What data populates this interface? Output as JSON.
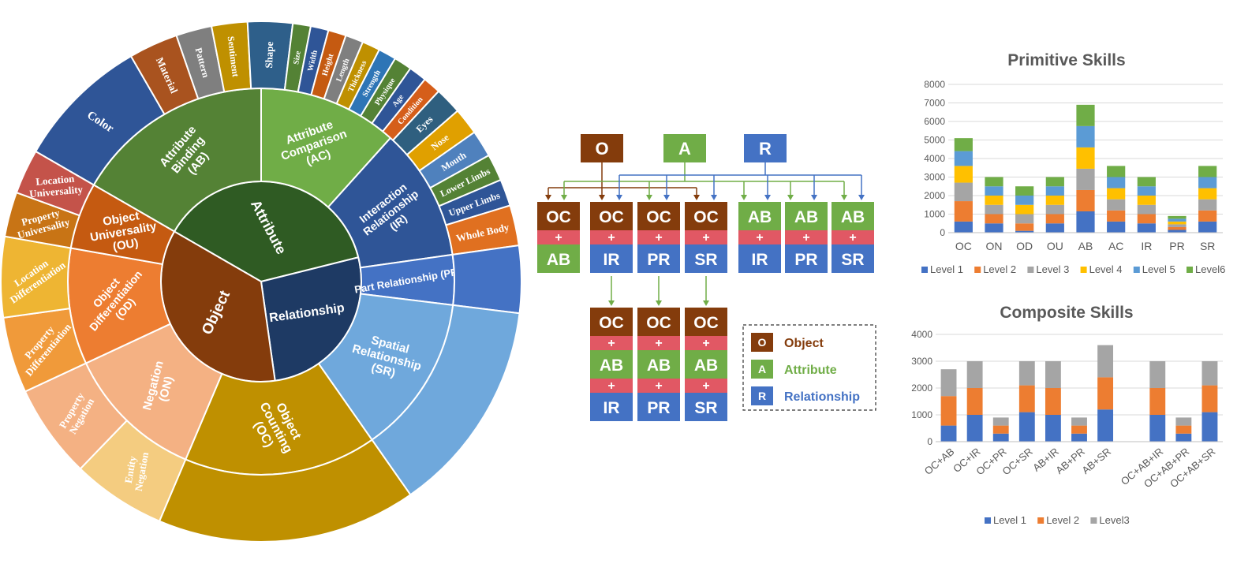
{
  "sunburst": {
    "inner": [
      {
        "label": "Attribute",
        "color": "#2f5b23"
      },
      {
        "label": "Relationship",
        "color": "#1e3a64"
      },
      {
        "label": "Object",
        "color": "#843c0c"
      }
    ],
    "middle": [
      {
        "label": "Attribute\nBinding\n(AB)",
        "color": "#548235"
      },
      {
        "label": "Attribute\nComparison\n(AC)",
        "color": "#70ad47"
      },
      {
        "label": "Interaction\nRelationship\n(IR)",
        "color": "#2f5597"
      },
      {
        "label": "Part Relationship (PR)",
        "color": "#4472c4"
      },
      {
        "label": "Spatial\nRelationship\n(SR)",
        "color": "#6fa8dc"
      },
      {
        "label": "Object\nCounting\n(OC)",
        "color": "#bf9000"
      },
      {
        "label": "Negation\n(ON)",
        "color": "#f4b183"
      },
      {
        "label": "Object\nDifferentiation\n(OD)",
        "color": "#ed7d31"
      },
      {
        "label": "Object\nUniversality\n(OU)",
        "color": "#c55a11"
      }
    ],
    "outer": [
      {
        "label": "Color",
        "color": "#2f5597"
      },
      {
        "label": "Material",
        "color": "#a9531f"
      },
      {
        "label": "Pattern",
        "color": "#7f7f7f"
      },
      {
        "label": "Sentiment",
        "color": "#bf9000"
      },
      {
        "label": "Shape",
        "color": "#2e5f8a"
      },
      {
        "label": "Size",
        "color": "#548235"
      },
      {
        "label": "Width",
        "color": "#2f5597"
      },
      {
        "label": "Height",
        "color": "#c55a11"
      },
      {
        "label": "Length",
        "color": "#7f7f7f"
      },
      {
        "label": "Thickness",
        "color": "#bf9000"
      },
      {
        "label": "Strength",
        "color": "#2e75b6"
      },
      {
        "label": "Physique",
        "color": "#548235"
      },
      {
        "label": "Age",
        "color": "#2f5597"
      },
      {
        "label": "Condition",
        "color": "#d55e1a"
      },
      {
        "label": "Eyes",
        "color": "#2f5f7f"
      },
      {
        "label": "Nose",
        "color": "#e0a000"
      },
      {
        "label": "Mouth",
        "color": "#4f81bd"
      },
      {
        "label": "Lower Limbs",
        "color": "#548235"
      },
      {
        "label": "Upper Limbs",
        "color": "#2f5597"
      },
      {
        "label": "Whole Body",
        "color": "#e07020"
      },
      {
        "label": "",
        "color": "#4472c4"
      },
      {
        "label": "",
        "color": "#6fa8dc"
      },
      {
        "label": "",
        "color": "#bf9000"
      },
      {
        "label": "Entity\nNegation",
        "color": "#f4cc80"
      },
      {
        "label": "Property\nNegation",
        "color": "#f4b183"
      },
      {
        "label": "Property\nDifferentiation",
        "color": "#f09a3a"
      },
      {
        "label": "Location\nDifferentiation",
        "color": "#eeb533"
      },
      {
        "label": "Property\nUniversality",
        "color": "#c87415"
      },
      {
        "label": "Location\nUniversality",
        "color": "#c4534a"
      }
    ]
  },
  "diagram": {
    "top": [
      {
        "letter": "O",
        "color": "#843c0c"
      },
      {
        "letter": "A",
        "color": "#70ad47"
      },
      {
        "letter": "R",
        "color": "#4472c4"
      }
    ],
    "plus": "+",
    "row1": [
      [
        "OC",
        "AB"
      ],
      [
        "OC",
        "IR"
      ],
      [
        "OC",
        "PR"
      ],
      [
        "OC",
        "SR"
      ],
      [
        "AB",
        "IR"
      ],
      [
        "AB",
        "PR"
      ],
      [
        "AB",
        "SR"
      ]
    ],
    "row2": [
      [
        "OC",
        "AB",
        "IR"
      ],
      [
        "OC",
        "AB",
        "PR"
      ],
      [
        "OC",
        "AB",
        "SR"
      ]
    ],
    "legend": [
      {
        "letter": "O",
        "label": "Object",
        "color": "#843c0c",
        "text_color": "#843c0c"
      },
      {
        "letter": "A",
        "label": "Attribute",
        "color": "#70ad47",
        "text_color": "#70ad47"
      },
      {
        "letter": "R",
        "label": "Relationship",
        "color": "#4472c4",
        "text_color": "#4472c4"
      }
    ]
  },
  "chart_data": [
    {
      "type": "bar",
      "stacked": true,
      "title": "Primitive Skills",
      "categories": [
        "OC",
        "ON",
        "OD",
        "OU",
        "AB",
        "AC",
        "IR",
        "PR",
        "SR"
      ],
      "ylim": [
        0,
        8000
      ],
      "yticks": [
        "0",
        "1000",
        "2000",
        "3000",
        "4000",
        "5000",
        "6000",
        "7000",
        "8000"
      ],
      "series": [
        {
          "name": "Level 1",
          "color": "#4472c4",
          "values": [
            600,
            500,
            100,
            500,
            1150,
            600,
            500,
            150,
            600
          ]
        },
        {
          "name": "Level 2",
          "color": "#ed7d31",
          "values": [
            1100,
            500,
            400,
            500,
            1150,
            600,
            500,
            150,
            600
          ]
        },
        {
          "name": "Level 3",
          "color": "#a5a5a5",
          "values": [
            1000,
            500,
            500,
            500,
            1150,
            600,
            500,
            150,
            600
          ]
        },
        {
          "name": "Level 4",
          "color": "#ffc000",
          "values": [
            900,
            500,
            500,
            500,
            1150,
            600,
            500,
            150,
            600
          ]
        },
        {
          "name": "Level 5",
          "color": "#5b9bd5",
          "values": [
            800,
            500,
            500,
            500,
            1150,
            600,
            500,
            150,
            600
          ]
        },
        {
          "name": "Level6",
          "color": "#70ad47",
          "values": [
            700,
            500,
            500,
            500,
            1150,
            600,
            500,
            150,
            600
          ]
        }
      ],
      "grid": true,
      "legend": "bottom"
    },
    {
      "type": "bar",
      "stacked": true,
      "title": "Composite Skills",
      "categories": [
        "OC+AB",
        "OC+IR",
        "OC+PR",
        "OC+SR",
        "AB+IR",
        "AB+PR",
        "AB+SR",
        "",
        "OC+AB+IR",
        "OC+AB+PR",
        "OC+AB+SR"
      ],
      "ylim": [
        0,
        4000
      ],
      "yticks": [
        "0",
        "1000",
        "2000",
        "3000",
        "4000"
      ],
      "series": [
        {
          "name": "Level 1",
          "color": "#4472c4",
          "values": [
            600,
            1000,
            300,
            1100,
            1000,
            300,
            1200,
            0,
            1000,
            300,
            1100
          ]
        },
        {
          "name": "Level 2",
          "color": "#ed7d31",
          "values": [
            1100,
            1000,
            300,
            1000,
            1000,
            300,
            1200,
            0,
            1000,
            300,
            1000
          ]
        },
        {
          "name": "Level3",
          "color": "#a5a5a5",
          "values": [
            1000,
            1000,
            300,
            900,
            1000,
            300,
            1200,
            0,
            1000,
            300,
            900
          ]
        }
      ],
      "grid": true,
      "legend": "bottom"
    }
  ]
}
